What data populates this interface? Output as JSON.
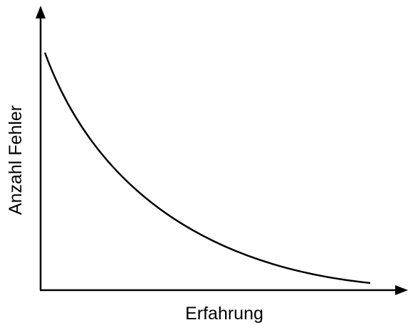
{
  "axes": {
    "y_label": "Anzahl Fehler",
    "x_label": "Erfahrung"
  }
}
